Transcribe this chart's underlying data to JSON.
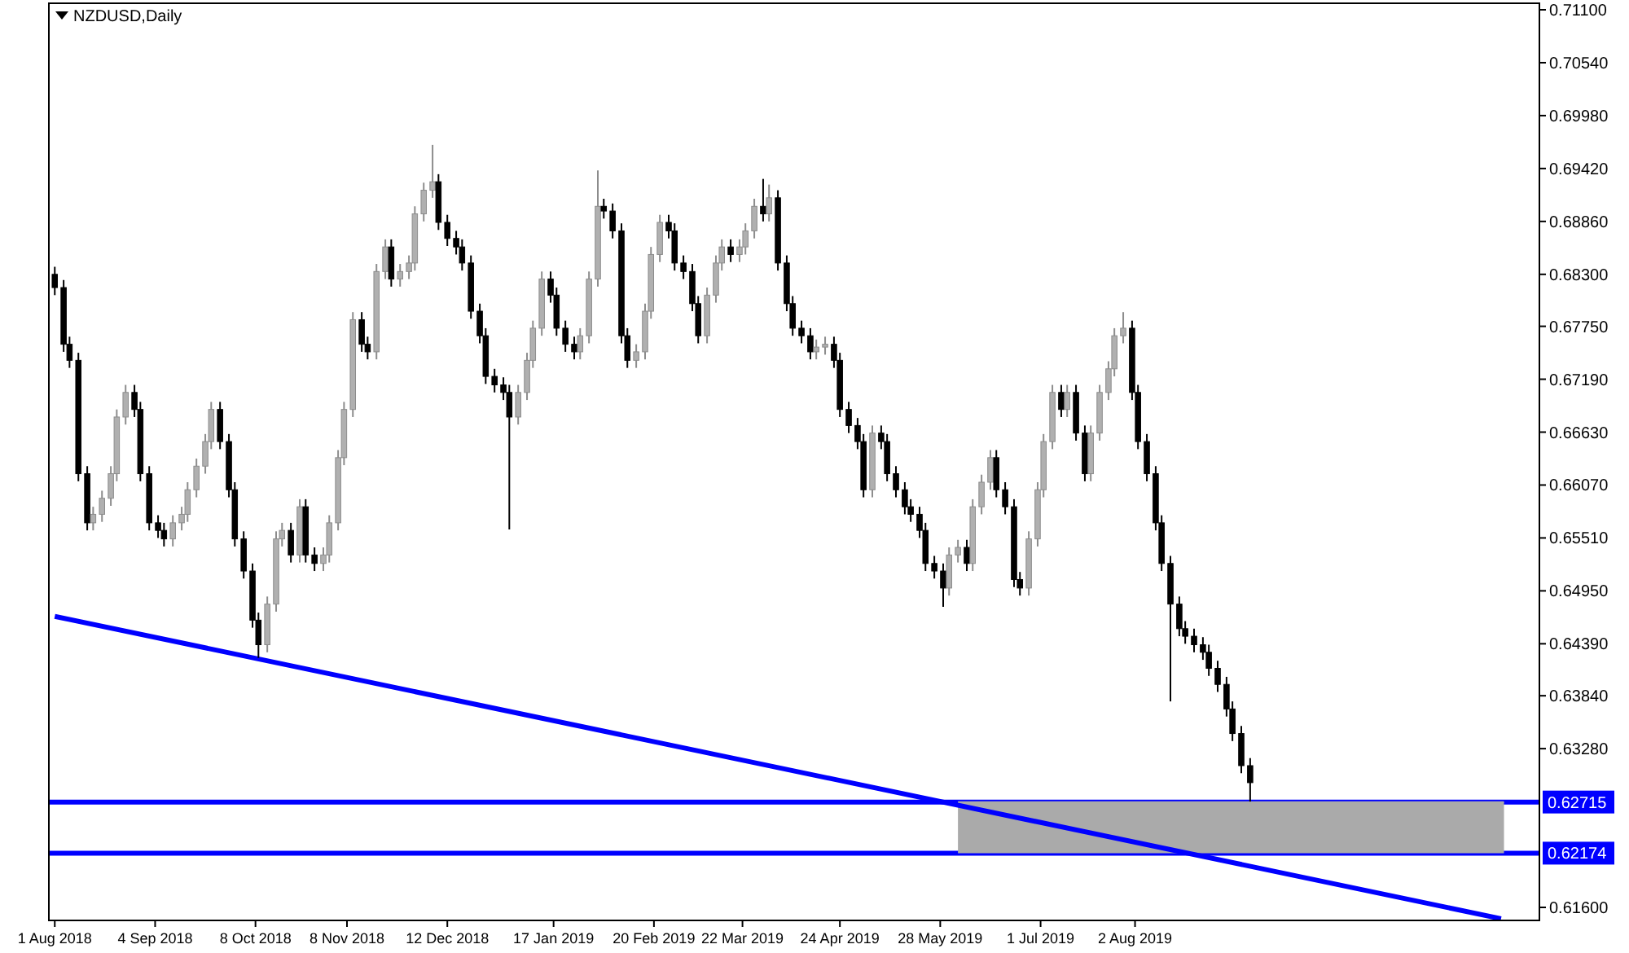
{
  "chart_data": {
    "type": "candlestick",
    "title": "NZDUSD,Daily",
    "x": [
      "2018-08-01",
      "2018-08-04",
      "2018-08-06",
      "2018-08-09",
      "2018-08-12",
      "2018-08-14",
      "2018-08-17",
      "2018-08-20",
      "2018-08-22",
      "2018-08-25",
      "2018-08-28",
      "2018-08-30",
      "2018-09-02",
      "2018-09-05",
      "2018-09-07",
      "2018-09-10",
      "2018-09-13",
      "2018-09-15",
      "2018-09-18",
      "2018-09-21",
      "2018-09-23",
      "2018-09-26",
      "2018-09-29",
      "2018-10-01",
      "2018-10-04",
      "2018-10-07",
      "2018-10-09",
      "2018-10-12",
      "2018-10-15",
      "2018-10-17",
      "2018-10-20",
      "2018-10-23",
      "2018-10-25",
      "2018-10-28",
      "2018-10-31",
      "2018-11-02",
      "2018-11-05",
      "2018-11-07",
      "2018-11-10",
      "2018-11-13",
      "2018-11-15",
      "2018-11-18",
      "2018-11-21",
      "2018-11-23",
      "2018-11-26",
      "2018-11-29",
      "2018-12-01",
      "2018-12-04",
      "2018-12-07",
      "2018-12-09",
      "2018-12-12",
      "2018-12-15",
      "2018-12-17",
      "2018-12-20",
      "2018-12-23",
      "2018-12-25",
      "2018-12-28",
      "2018-12-31",
      "2019-01-02",
      "2019-01-05",
      "2019-01-08",
      "2019-01-10",
      "2019-01-13",
      "2019-01-16",
      "2019-01-18",
      "2019-01-21",
      "2019-01-24",
      "2019-01-26",
      "2019-01-29",
      "2019-02-01",
      "2019-02-03",
      "2019-02-06",
      "2019-02-09",
      "2019-02-11",
      "2019-02-14",
      "2019-02-17",
      "2019-02-19",
      "2019-02-22",
      "2019-02-25",
      "2019-02-27",
      "2019-03-02",
      "2019-03-05",
      "2019-03-07",
      "2019-03-10",
      "2019-03-13",
      "2019-03-15",
      "2019-03-18",
      "2019-03-21",
      "2019-03-23",
      "2019-03-26",
      "2019-03-29",
      "2019-03-31",
      "2019-04-03",
      "2019-04-06",
      "2019-04-08",
      "2019-04-11",
      "2019-04-14",
      "2019-04-16",
      "2019-04-19",
      "2019-04-22",
      "2019-04-24",
      "2019-04-27",
      "2019-04-30",
      "2019-05-02",
      "2019-05-05",
      "2019-05-08",
      "2019-05-10",
      "2019-05-13",
      "2019-05-16",
      "2019-05-18",
      "2019-05-21",
      "2019-05-23",
      "2019-05-26",
      "2019-05-29",
      "2019-05-31",
      "2019-06-03",
      "2019-06-06",
      "2019-06-08",
      "2019-06-11",
      "2019-06-14",
      "2019-06-16",
      "2019-06-19",
      "2019-06-22",
      "2019-06-24",
      "2019-06-27",
      "2019-06-30",
      "2019-07-02",
      "2019-07-05",
      "2019-07-08",
      "2019-07-10",
      "2019-07-13",
      "2019-07-16",
      "2019-07-18",
      "2019-07-21",
      "2019-07-24",
      "2019-07-26",
      "2019-07-29",
      "2019-08-01",
      "2019-08-03",
      "2019-08-06",
      "2019-08-09",
      "2019-08-11",
      "2019-08-14",
      "2019-08-17",
      "2019-08-19",
      "2019-08-22",
      "2019-08-25",
      "2019-08-27",
      "2019-08-30",
      "2019-09-02",
      "2019-09-04",
      "2019-09-07",
      "2019-09-10"
    ],
    "ohlc": [
      [
        0.683,
        0.6838,
        0.6808,
        0.6816
      ],
      [
        0.6816,
        0.6824,
        0.6748,
        0.6756
      ],
      [
        0.6756,
        0.6764,
        0.6731,
        0.6739
      ],
      [
        0.6739,
        0.6747,
        0.6611,
        0.6619
      ],
      [
        0.6619,
        0.6627,
        0.6559,
        0.6567
      ],
      [
        0.6567,
        0.6584,
        0.6559,
        0.6576
      ],
      [
        0.6576,
        0.6601,
        0.6568,
        0.6593
      ],
      [
        0.6593,
        0.6627,
        0.6585,
        0.6619
      ],
      [
        0.6619,
        0.6687,
        0.6611,
        0.6679
      ],
      [
        0.6679,
        0.6713,
        0.6671,
        0.6705
      ],
      [
        0.6705,
        0.6713,
        0.6679,
        0.6687
      ],
      [
        0.6687,
        0.6695,
        0.6611,
        0.6619
      ],
      [
        0.6619,
        0.6627,
        0.6559,
        0.6567
      ],
      [
        0.6567,
        0.6575,
        0.6551,
        0.6559
      ],
      [
        0.6559,
        0.6567,
        0.6542,
        0.655
      ],
      [
        0.655,
        0.6575,
        0.6542,
        0.6567
      ],
      [
        0.6567,
        0.6584,
        0.6559,
        0.6576
      ],
      [
        0.6576,
        0.661,
        0.6568,
        0.6602
      ],
      [
        0.6602,
        0.6635,
        0.6594,
        0.6627
      ],
      [
        0.6627,
        0.6661,
        0.6619,
        0.6653
      ],
      [
        0.6653,
        0.6695,
        0.6645,
        0.6687
      ],
      [
        0.6687,
        0.6695,
        0.6645,
        0.6653
      ],
      [
        0.6653,
        0.6661,
        0.6594,
        0.6602
      ],
      [
        0.6602,
        0.661,
        0.6542,
        0.655
      ],
      [
        0.655,
        0.6558,
        0.6508,
        0.6516
      ],
      [
        0.6516,
        0.6524,
        0.6456,
        0.6464
      ],
      [
        0.6464,
        0.6472,
        0.6424,
        0.6438
      ],
      [
        0.6438,
        0.6489,
        0.643,
        0.6481
      ],
      [
        0.6481,
        0.6558,
        0.6473,
        0.655
      ],
      [
        0.655,
        0.6567,
        0.6542,
        0.6559
      ],
      [
        0.6559,
        0.6567,
        0.6525,
        0.6533
      ],
      [
        0.6533,
        0.6592,
        0.6525,
        0.6584
      ],
      [
        0.6584,
        0.6592,
        0.6525,
        0.6533
      ],
      [
        0.6533,
        0.6541,
        0.6516,
        0.6524
      ],
      [
        0.6524,
        0.6541,
        0.6516,
        0.6533
      ],
      [
        0.6533,
        0.6575,
        0.6525,
        0.6567
      ],
      [
        0.6567,
        0.6644,
        0.6559,
        0.6636
      ],
      [
        0.6636,
        0.6695,
        0.6628,
        0.6687
      ],
      [
        0.6687,
        0.679,
        0.6679,
        0.6782
      ],
      [
        0.6782,
        0.679,
        0.6748,
        0.6756
      ],
      [
        0.6756,
        0.6764,
        0.674,
        0.6748
      ],
      [
        0.6748,
        0.6841,
        0.674,
        0.6833
      ],
      [
        0.6833,
        0.6867,
        0.6825,
        0.6859
      ],
      [
        0.6859,
        0.6867,
        0.6817,
        0.6825
      ],
      [
        0.6825,
        0.6841,
        0.6817,
        0.6833
      ],
      [
        0.6833,
        0.685,
        0.6825,
        0.6842
      ],
      [
        0.6842,
        0.6902,
        0.6834,
        0.6894
      ],
      [
        0.6894,
        0.6927,
        0.6886,
        0.6919
      ],
      [
        0.6919,
        0.6967,
        0.6911,
        0.6928
      ],
      [
        0.6928,
        0.6936,
        0.6877,
        0.6885
      ],
      [
        0.6885,
        0.6893,
        0.686,
        0.6868
      ],
      [
        0.6868,
        0.6876,
        0.6851,
        0.6859
      ],
      [
        0.6859,
        0.6867,
        0.6834,
        0.6842
      ],
      [
        0.6842,
        0.685,
        0.6783,
        0.6791
      ],
      [
        0.6791,
        0.6799,
        0.6757,
        0.6765
      ],
      [
        0.6765,
        0.6773,
        0.6714,
        0.6722
      ],
      [
        0.6722,
        0.673,
        0.6705,
        0.6713
      ],
      [
        0.6713,
        0.6721,
        0.6697,
        0.6705
      ],
      [
        0.6705,
        0.6713,
        0.656,
        0.6679
      ],
      [
        0.6679,
        0.6713,
        0.6671,
        0.6705
      ],
      [
        0.6705,
        0.6747,
        0.6697,
        0.6739
      ],
      [
        0.6739,
        0.6781,
        0.6731,
        0.6773
      ],
      [
        0.6773,
        0.6833,
        0.6765,
        0.6825
      ],
      [
        0.6825,
        0.6833,
        0.68,
        0.6808
      ],
      [
        0.6808,
        0.6816,
        0.6765,
        0.6773
      ],
      [
        0.6773,
        0.6781,
        0.6748,
        0.6756
      ],
      [
        0.6756,
        0.6764,
        0.674,
        0.6748
      ],
      [
        0.6748,
        0.6773,
        0.674,
        0.6765
      ],
      [
        0.6765,
        0.6833,
        0.6757,
        0.6825
      ],
      [
        0.6825,
        0.694,
        0.6817,
        0.6902
      ],
      [
        0.6902,
        0.691,
        0.6889,
        0.6897
      ],
      [
        0.6897,
        0.6905,
        0.6868,
        0.6876
      ],
      [
        0.6876,
        0.6884,
        0.6757,
        0.6765
      ],
      [
        0.6765,
        0.6773,
        0.6731,
        0.6739
      ],
      [
        0.6739,
        0.6756,
        0.6731,
        0.6748
      ],
      [
        0.6748,
        0.6799,
        0.674,
        0.6791
      ],
      [
        0.6791,
        0.6859,
        0.6783,
        0.6851
      ],
      [
        0.6851,
        0.6893,
        0.6843,
        0.6885
      ],
      [
        0.6885,
        0.6893,
        0.6868,
        0.6876
      ],
      [
        0.6876,
        0.6884,
        0.6834,
        0.6842
      ],
      [
        0.6842,
        0.685,
        0.6825,
        0.6833
      ],
      [
        0.6833,
        0.6841,
        0.6791,
        0.6799
      ],
      [
        0.6799,
        0.6807,
        0.6757,
        0.6765
      ],
      [
        0.6765,
        0.6816,
        0.6757,
        0.6808
      ],
      [
        0.6808,
        0.685,
        0.68,
        0.6842
      ],
      [
        0.6842,
        0.6867,
        0.6834,
        0.6859
      ],
      [
        0.6859,
        0.6867,
        0.6843,
        0.6851
      ],
      [
        0.6851,
        0.6867,
        0.6843,
        0.6859
      ],
      [
        0.6859,
        0.6884,
        0.6851,
        0.6876
      ],
      [
        0.6876,
        0.691,
        0.6868,
        0.6902
      ],
      [
        0.6902,
        0.6931,
        0.6886,
        0.6894
      ],
      [
        0.6894,
        0.6925,
        0.6886,
        0.6911
      ],
      [
        0.6911,
        0.6919,
        0.6834,
        0.6842
      ],
      [
        0.6842,
        0.685,
        0.6791,
        0.6799
      ],
      [
        0.6799,
        0.6807,
        0.6765,
        0.6773
      ],
      [
        0.6773,
        0.6781,
        0.6757,
        0.6765
      ],
      [
        0.6765,
        0.6773,
        0.674,
        0.6748
      ],
      [
        0.6748,
        0.6761,
        0.674,
        0.6753
      ],
      [
        0.6753,
        0.6764,
        0.6745,
        0.6756
      ],
      [
        0.6756,
        0.6764,
        0.6731,
        0.6739
      ],
      [
        0.6739,
        0.6747,
        0.6679,
        0.6687
      ],
      [
        0.6687,
        0.6695,
        0.6662,
        0.667
      ],
      [
        0.667,
        0.6678,
        0.6645,
        0.6653
      ],
      [
        0.6653,
        0.6661,
        0.6594,
        0.6602
      ],
      [
        0.6602,
        0.667,
        0.6594,
        0.6662
      ],
      [
        0.6662,
        0.667,
        0.6645,
        0.6653
      ],
      [
        0.6653,
        0.6661,
        0.6611,
        0.6619
      ],
      [
        0.6619,
        0.6627,
        0.6594,
        0.6602
      ],
      [
        0.6602,
        0.661,
        0.6576,
        0.6584
      ],
      [
        0.6584,
        0.6592,
        0.6568,
        0.6576
      ],
      [
        0.6576,
        0.6584,
        0.6551,
        0.6559
      ],
      [
        0.6559,
        0.6567,
        0.6516,
        0.6524
      ],
      [
        0.6524,
        0.6532,
        0.6508,
        0.6516
      ],
      [
        0.6516,
        0.6524,
        0.6478,
        0.6498
      ],
      [
        0.6498,
        0.6541,
        0.649,
        0.6533
      ],
      [
        0.6533,
        0.6549,
        0.6525,
        0.6541
      ],
      [
        0.6541,
        0.6549,
        0.6516,
        0.6524
      ],
      [
        0.6524,
        0.6592,
        0.6516,
        0.6584
      ],
      [
        0.6584,
        0.6618,
        0.6576,
        0.661
      ],
      [
        0.661,
        0.6644,
        0.6602,
        0.6636
      ],
      [
        0.6636,
        0.6644,
        0.6594,
        0.6602
      ],
      [
        0.6602,
        0.661,
        0.6576,
        0.6584
      ],
      [
        0.6584,
        0.6592,
        0.6499,
        0.6507
      ],
      [
        0.6507,
        0.6515,
        0.649,
        0.6498
      ],
      [
        0.6498,
        0.6558,
        0.649,
        0.655
      ],
      [
        0.655,
        0.661,
        0.6542,
        0.6602
      ],
      [
        0.6602,
        0.6661,
        0.6594,
        0.6653
      ],
      [
        0.6653,
        0.6713,
        0.6645,
        0.6705
      ],
      [
        0.6705,
        0.6713,
        0.6679,
        0.6687
      ],
      [
        0.6687,
        0.6713,
        0.6679,
        0.6705
      ],
      [
        0.6705,
        0.6713,
        0.6654,
        0.6662
      ],
      [
        0.6662,
        0.667,
        0.6611,
        0.6619
      ],
      [
        0.6619,
        0.667,
        0.6611,
        0.6662
      ],
      [
        0.6662,
        0.6713,
        0.6654,
        0.6705
      ],
      [
        0.6705,
        0.6738,
        0.6697,
        0.673
      ],
      [
        0.673,
        0.6773,
        0.6722,
        0.6765
      ],
      [
        0.6765,
        0.679,
        0.6757,
        0.6773
      ],
      [
        0.6773,
        0.6781,
        0.6697,
        0.6705
      ],
      [
        0.6705,
        0.6713,
        0.6645,
        0.6653
      ],
      [
        0.6653,
        0.6661,
        0.6611,
        0.6619
      ],
      [
        0.6619,
        0.6627,
        0.6559,
        0.6567
      ],
      [
        0.6567,
        0.6575,
        0.6516,
        0.6524
      ],
      [
        0.6524,
        0.6532,
        0.6378,
        0.6481
      ],
      [
        0.6481,
        0.6489,
        0.6447,
        0.6455
      ],
      [
        0.6455,
        0.6463,
        0.6439,
        0.6447
      ],
      [
        0.6447,
        0.6455,
        0.643,
        0.6438
      ],
      [
        0.6438,
        0.6446,
        0.6422,
        0.643
      ],
      [
        0.643,
        0.6438,
        0.6405,
        0.6413
      ],
      [
        0.6413,
        0.6421,
        0.6388,
        0.6396
      ],
      [
        0.6396,
        0.6404,
        0.6362,
        0.637
      ],
      [
        0.637,
        0.6378,
        0.6336,
        0.6344
      ],
      [
        0.6344,
        0.6352,
        0.6302,
        0.631
      ],
      [
        0.631,
        0.6318,
        0.6272,
        0.6292
      ]
    ],
    "series": [
      {
        "type": "line",
        "x": [
          "2019-06-03",
          "2019-12-05"
        ],
        "values": [
          0.62715,
          0.62715
        ],
        "lower": [
          0.62174,
          0.62174
        ],
        "upper": [
          0.62715,
          0.62715
        ],
        "color": "#aaaaaa"
      },
      {
        "type": "line",
        "x": [
          "2018-08-01",
          "2019-12-04"
        ],
        "values": [
          0.6468,
          0.6148
        ],
        "color": "#0000ff"
      }
    ],
    "ref_lines": [
      {
        "axis": "y",
        "value": 0.62715,
        "label": "0.62715",
        "color": "#0000ff"
      },
      {
        "axis": "y",
        "value": 0.62174,
        "label": "0.62174",
        "color": "#0000ff"
      }
    ],
    "xlim": [
      "2018-07-30",
      "2019-12-17"
    ],
    "xticks": [
      {
        "value": "2018-08-01",
        "label": "1 Aug 2018"
      },
      {
        "value": "2018-09-04",
        "label": "4 Sep 2018"
      },
      {
        "value": "2018-10-08",
        "label": "8 Oct 2018"
      },
      {
        "value": "2018-11-08",
        "label": "8 Nov 2018"
      },
      {
        "value": "2018-12-12",
        "label": "12 Dec 2018"
      },
      {
        "value": "2019-01-17",
        "label": "17 Jan 2019"
      },
      {
        "value": "2019-02-20",
        "label": "20 Feb 2019"
      },
      {
        "value": "2019-03-22",
        "label": "22 Mar 2019"
      },
      {
        "value": "2019-04-24",
        "label": "24 Apr 2019"
      },
      {
        "value": "2019-05-28",
        "label": "28 May 2019"
      },
      {
        "value": "2019-07-01",
        "label": "1 Jul 2019"
      },
      {
        "value": "2019-08-02",
        "label": "2 Aug 2019"
      }
    ],
    "ylim": [
      0.61462,
      0.71169
    ],
    "yticks": [
      {
        "value": 0.711,
        "label": "0.71100"
      },
      {
        "value": 0.7054,
        "label": "0.70540"
      },
      {
        "value": 0.6998,
        "label": "0.69980"
      },
      {
        "value": 0.6942,
        "label": "0.69420"
      },
      {
        "value": 0.6886,
        "label": "0.68860"
      },
      {
        "value": 0.683,
        "label": "0.68300"
      },
      {
        "value": 0.6775,
        "label": "0.67750"
      },
      {
        "value": 0.6719,
        "label": "0.67190"
      },
      {
        "value": 0.6663,
        "label": "0.66630"
      },
      {
        "value": 0.6607,
        "label": "0.66070"
      },
      {
        "value": 0.6551,
        "label": "0.65510"
      },
      {
        "value": 0.6495,
        "label": "0.64950"
      },
      {
        "value": 0.6439,
        "label": "0.64390"
      },
      {
        "value": 0.6384,
        "label": "0.63840"
      },
      {
        "value": 0.6328,
        "label": "0.63280"
      },
      {
        "value": 0.616,
        "label": "0.61600"
      }
    ],
    "grid": false
  }
}
